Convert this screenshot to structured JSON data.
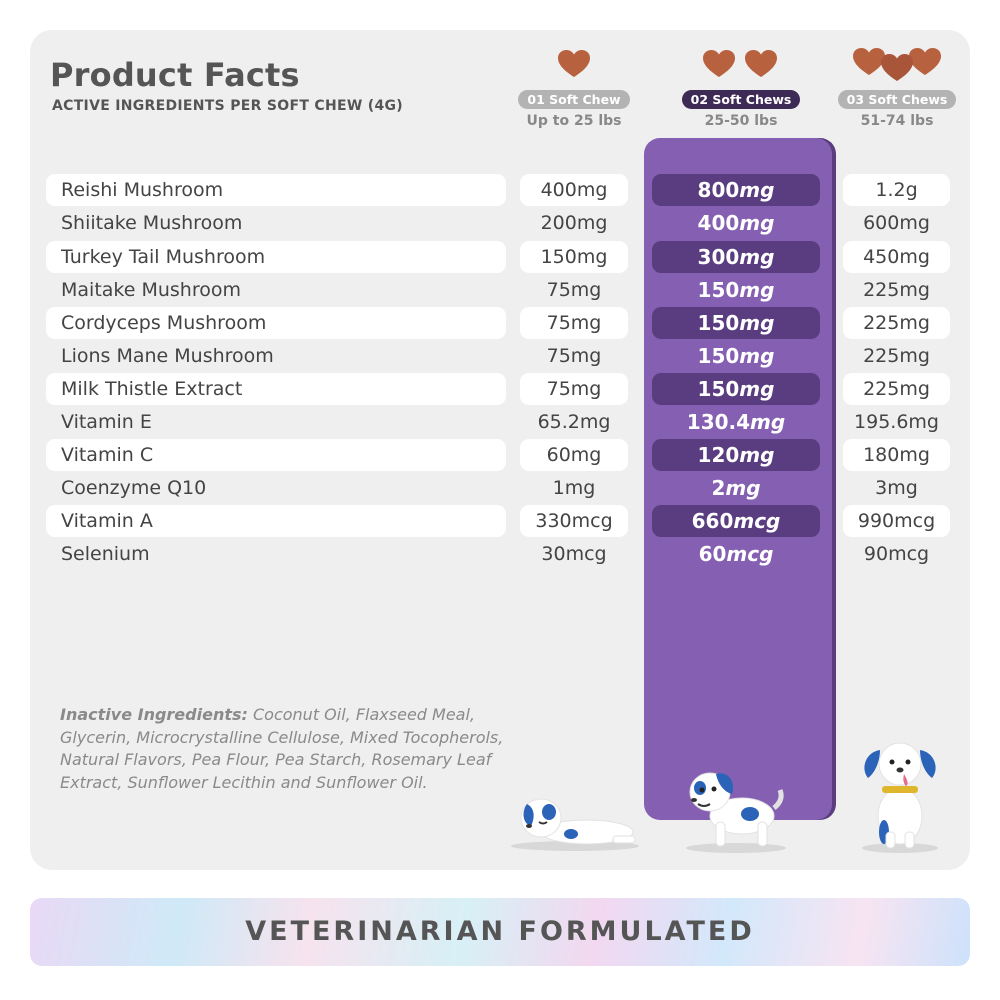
{
  "title": "Product Facts",
  "subtitle": "ACTIVE INGREDIENTS PER SOFT CHEW (4G)",
  "columns": [
    {
      "label": "01 Soft Chew",
      "weight": "Up to 25 lbs",
      "chew_count": 1
    },
    {
      "label": "02 Soft Chews",
      "weight": "25-50 lbs",
      "chew_count": 2
    },
    {
      "label": "03 Soft Chews",
      "weight": "51-74 lbs",
      "chew_count": 3
    }
  ],
  "rows": [
    {
      "name": "Reishi Mushroom",
      "v1": "400mg",
      "v2_num": "800",
      "v2_unit": "mg",
      "v3": "1.2g"
    },
    {
      "name": "Shiitake Mushroom",
      "v1": "200mg",
      "v2_num": "400",
      "v2_unit": "mg",
      "v3": "600mg"
    },
    {
      "name": "Turkey Tail Mushroom",
      "v1": "150mg",
      "v2_num": "300",
      "v2_unit": "mg",
      "v3": "450mg"
    },
    {
      "name": "Maitake Mushroom",
      "v1": "75mg",
      "v2_num": "150",
      "v2_unit": "mg",
      "v3": "225mg"
    },
    {
      "name": "Cordyceps Mushroom",
      "v1": "75mg",
      "v2_num": "150",
      "v2_unit": "mg",
      "v3": "225mg"
    },
    {
      "name": "Lions Mane Mushroom",
      "v1": "75mg",
      "v2_num": "150",
      "v2_unit": "mg",
      "v3": "225mg"
    },
    {
      "name": "Milk Thistle Extract",
      "v1": "75mg",
      "v2_num": "150",
      "v2_unit": "mg",
      "v3": "225mg"
    },
    {
      "name": "Vitamin E",
      "v1": "65.2mg",
      "v2_num": "130.4",
      "v2_unit": "mg",
      "v3": "195.6mg"
    },
    {
      "name": "Vitamin C",
      "v1": "60mg",
      "v2_num": "120",
      "v2_unit": "mg",
      "v3": "180mg"
    },
    {
      "name": "Coenzyme Q10",
      "v1": "1mg",
      "v2_num": "2",
      "v2_unit": "mg",
      "v3": "3mg"
    },
    {
      "name": "Vitamin A",
      "v1": "330mcg",
      "v2_num": "660",
      "v2_unit": "mcg",
      "v3": "990mcg"
    },
    {
      "name": "Selenium",
      "v1": "30mcg",
      "v2_num": "60",
      "v2_unit": "mcg",
      "v3": "90mcg"
    }
  ],
  "inactive": {
    "label": "Inactive Ingredients:",
    "text": " Coconut Oil, Flaxseed Meal, Glycerin, Microcrystalline Cellulose, Mixed Tocopherols, Natural Flavors, Pea Flour, Pea Starch, Rosemary Leaf Extract, Sunflower Lecithin and Sunflower Oil."
  },
  "banner": "VETERINARIAN FORMULATED",
  "colors": {
    "highlight": "#8560b2",
    "highlight_dark": "#5a3d80",
    "chew": "#b8613f",
    "dog_blue": "#2a63b8"
  }
}
